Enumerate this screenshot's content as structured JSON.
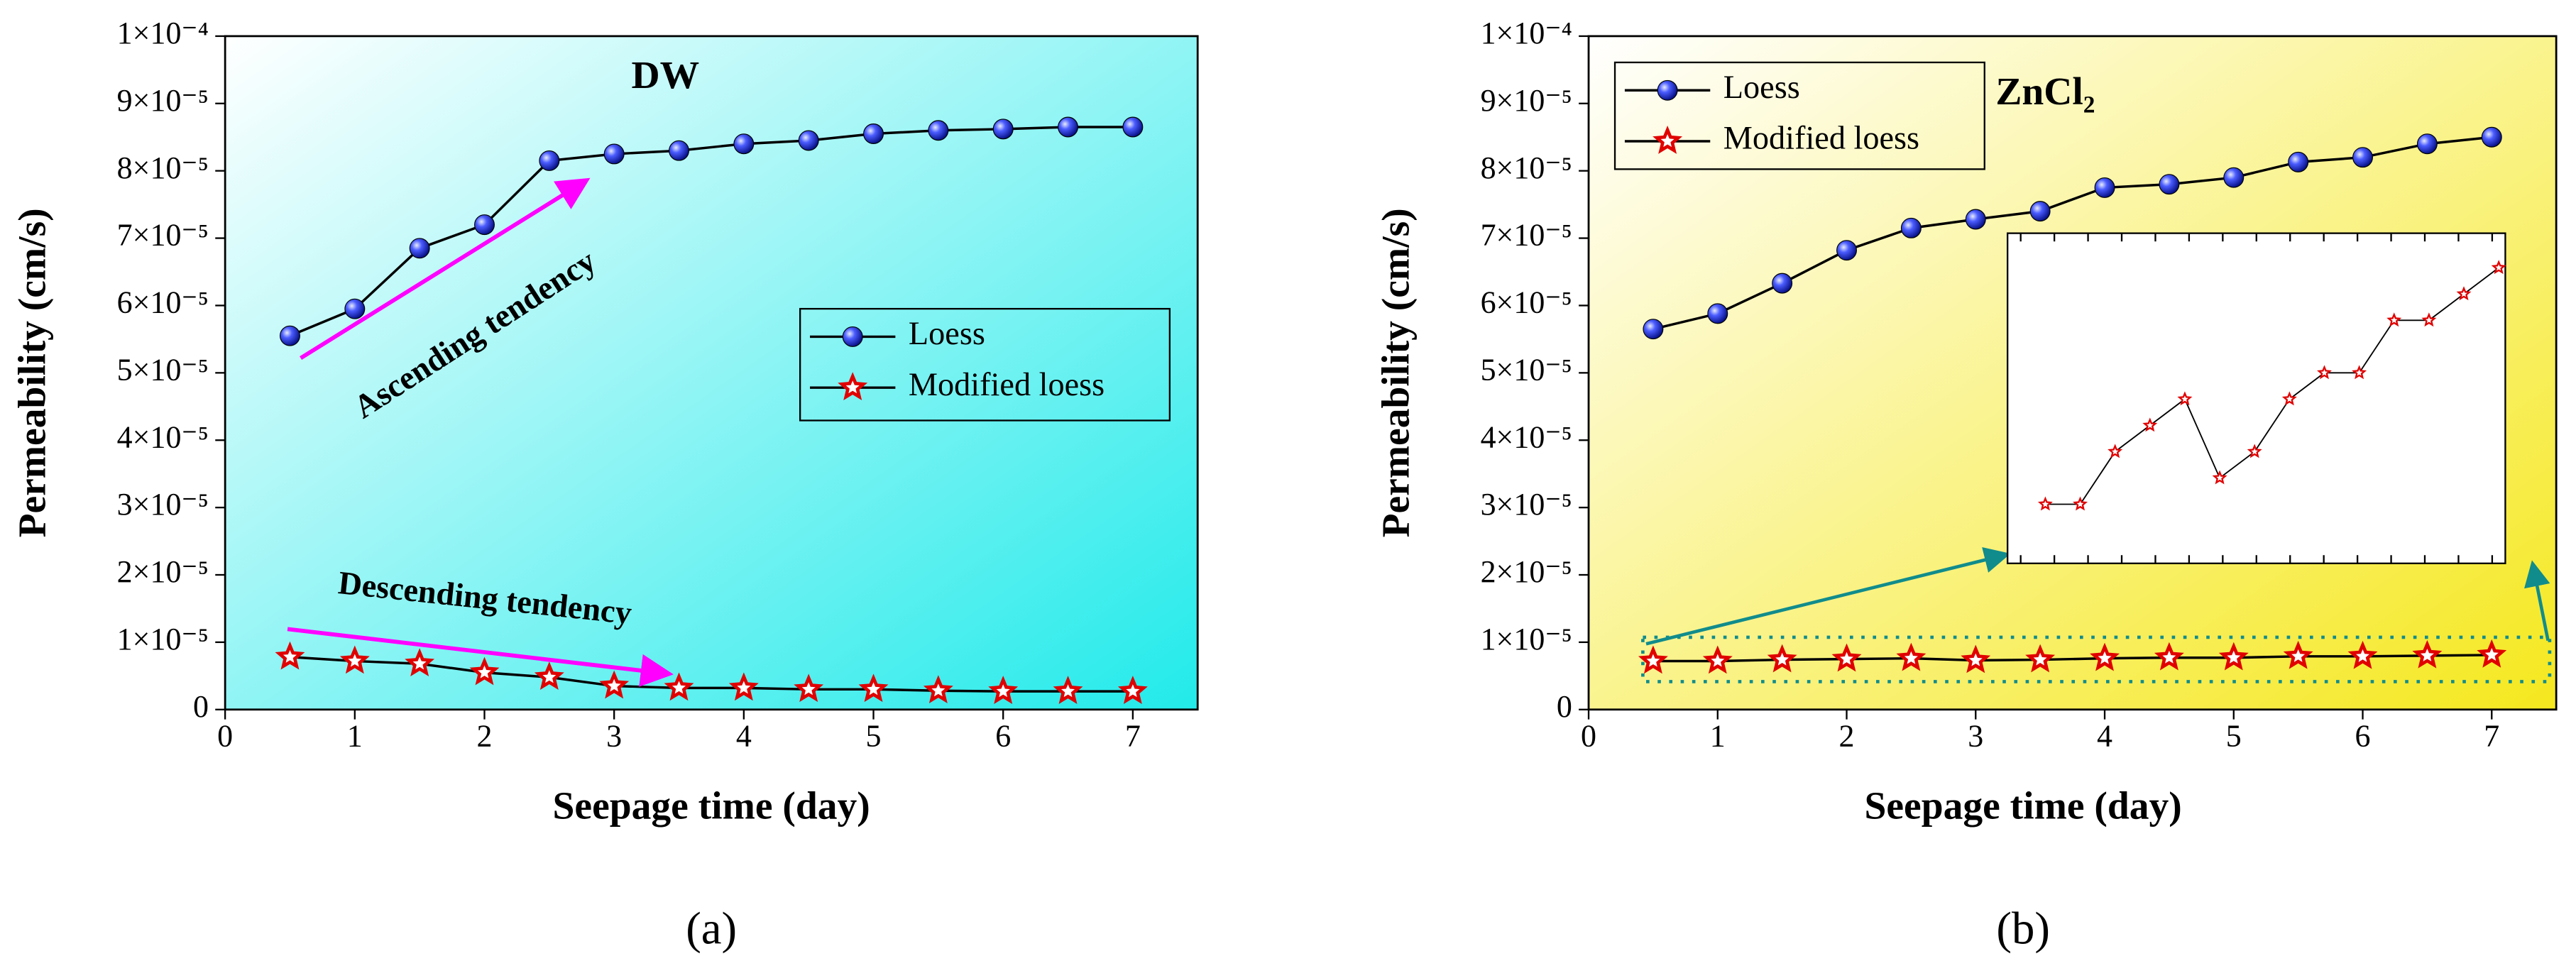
{
  "chart_data": [
    {
      "type": "line",
      "title": "DW",
      "x_label": "Seepage time (day)",
      "y_label": "Permeability (cm/s)",
      "caption": "(a)",
      "annotations": [
        "Ascending tendency",
        "Descending tendency"
      ],
      "x": [
        0.5,
        1,
        1.5,
        2,
        2.5,
        3,
        3.5,
        4,
        4.5,
        5,
        5.5,
        6,
        6.5,
        7
      ],
      "series": [
        {
          "name": "Loess",
          "color": "#1f2fe0",
          "marker": "circle",
          "values": [
            5.55e-05,
            5.95e-05,
            6.85e-05,
            7.2e-05,
            8.15e-05,
            8.25e-05,
            8.3e-05,
            8.4e-05,
            8.45e-05,
            8.55e-05,
            8.6e-05,
            8.62e-05,
            8.65e-05,
            8.65e-05
          ]
        },
        {
          "name": "Modified loess",
          "color": "#e00000",
          "marker": "star",
          "values": [
            7.8e-06,
            7.2e-06,
            6.8e-06,
            5.5e-06,
            4.8e-06,
            3.5e-06,
            3.2e-06,
            3.2e-06,
            3e-06,
            3e-06,
            2.8e-06,
            2.7e-06,
            2.7e-06,
            2.7e-06
          ]
        }
      ],
      "xlim": [
        0,
        7.5
      ],
      "xticks": [
        0,
        1,
        2,
        3,
        4,
        5,
        6,
        7
      ],
      "ylim": [
        0,
        0.0001
      ],
      "yticks": [
        0,
        {
          "value": 1e-05,
          "label": "1×10⁻⁵"
        },
        {
          "value": 2e-05,
          "label": "2×10⁻⁵"
        },
        {
          "value": 3e-05,
          "label": "3×10⁻⁵"
        },
        {
          "value": 4e-05,
          "label": "4×10⁻⁵"
        },
        {
          "value": 5e-05,
          "label": "5×10⁻⁵"
        },
        {
          "value": 6e-05,
          "label": "6×10⁻⁵"
        },
        {
          "value": 7e-05,
          "label": "7×10⁻⁵"
        },
        {
          "value": 8e-05,
          "label": "8×10⁻⁵"
        },
        {
          "value": 9e-05,
          "label": "9×10⁻⁵"
        },
        {
          "value": 0.0001,
          "label": "1×10⁻⁴"
        }
      ],
      "legend": "center right",
      "background": [
        "#ffffff",
        "#22eaea"
      ]
    },
    {
      "type": "line",
      "title": "ZnCl₂",
      "x_label": "Seepage time (day)",
      "y_label": "Permeability (cm/s)",
      "caption": "(b)",
      "x": [
        0.5,
        1,
        1.5,
        2,
        2.5,
        3,
        3.5,
        4,
        4.5,
        5,
        5.5,
        6,
        6.5,
        7
      ],
      "series": [
        {
          "name": "Loess",
          "color": "#1f2fe0",
          "marker": "circle",
          "values": [
            5.65e-05,
            5.88e-05,
            6.33e-05,
            6.82e-05,
            7.15e-05,
            7.28e-05,
            7.4e-05,
            7.75e-05,
            7.8e-05,
            7.9e-05,
            8.13e-05,
            8.2e-05,
            8.4e-05,
            8.5e-05
          ]
        },
        {
          "name": "Modified loess",
          "color": "#e00000",
          "marker": "star",
          "values": [
            7.2e-06,
            7.2e-06,
            7.4e-06,
            7.5e-06,
            7.6e-06,
            7.3e-06,
            7.4e-06,
            7.6e-06,
            7.7e-06,
            7.7e-06,
            7.9e-06,
            7.9e-06,
            8e-06,
            8.1e-06
          ]
        }
      ],
      "xlim": [
        0,
        7.5
      ],
      "xticks": [
        0,
        1,
        2,
        3,
        4,
        5,
        6,
        7
      ],
      "ylim": [
        0,
        0.0001
      ],
      "yticks": [
        0,
        {
          "value": 1e-05,
          "label": "1×10⁻⁵"
        },
        {
          "value": 2e-05,
          "label": "2×10⁻⁵"
        },
        {
          "value": 3e-05,
          "label": "3×10⁻⁵"
        },
        {
          "value": 4e-05,
          "label": "4×10⁻⁵"
        },
        {
          "value": 5e-05,
          "label": "5×10⁻⁵"
        },
        {
          "value": 6e-05,
          "label": "6×10⁻⁵"
        },
        {
          "value": 7e-05,
          "label": "7×10⁻⁵"
        },
        {
          "value": 8e-05,
          "label": "8×10⁻⁵"
        },
        {
          "value": 9e-05,
          "label": "9×10⁻⁵"
        },
        {
          "value": 0.0001,
          "label": "1×10⁻⁴"
        }
      ],
      "legend": "upper left",
      "inset": true,
      "background": [
        "#ffffff",
        "#f5e81e"
      ]
    }
  ]
}
